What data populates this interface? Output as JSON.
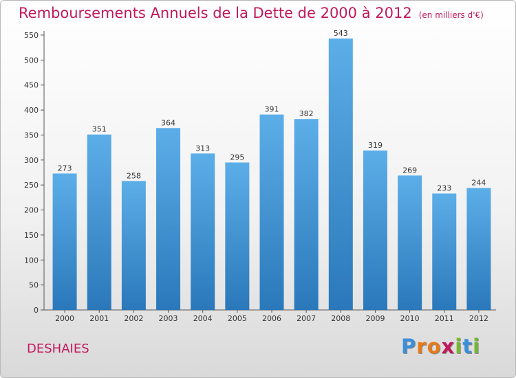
{
  "header": {
    "title": "Remboursements Annuels de la Dette de 2000 à 2012",
    "unit": "(en milliers d'€)"
  },
  "footer": {
    "commune": "DESHAIES",
    "logo_text": "Proxiti"
  },
  "colors": {
    "title": "#c2185b",
    "bar_top": "#5caee8",
    "bar_bottom": "#2a78ba",
    "logo_letters": [
      "#3b8fd8",
      "#e57b1a",
      "#e57b1a",
      "#c2185b",
      "#74b72e",
      "#3b8fd8",
      "#74b72e"
    ]
  },
  "chart_data": {
    "type": "bar",
    "title": "Remboursements Annuels de la Dette de 2000 à 2012",
    "subtitle": "(en milliers d'€)",
    "categories": [
      "2000",
      "2001",
      "2002",
      "2003",
      "2004",
      "2005",
      "2006",
      "2007",
      "2008",
      "2009",
      "2010",
      "2011",
      "2012"
    ],
    "values": [
      273,
      351,
      258,
      364,
      313,
      295,
      391,
      382,
      543,
      319,
      269,
      233,
      244
    ],
    "ylim": [
      0,
      550
    ],
    "yticks": [
      0,
      50,
      100,
      150,
      200,
      250,
      300,
      350,
      400,
      450,
      500,
      550
    ],
    "grid": false,
    "legend": "none"
  }
}
